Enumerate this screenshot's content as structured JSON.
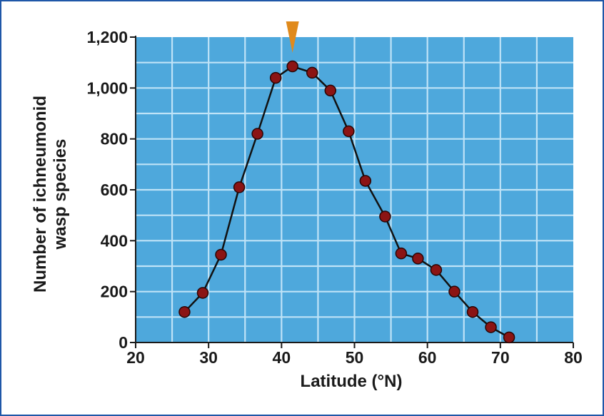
{
  "chart_data": {
    "type": "line",
    "title": "",
    "xlabel": "Latitude (°N)",
    "ylabel_lines": [
      "Number of ichneumonid",
      "wasp species"
    ],
    "xlim": [
      20,
      80
    ],
    "ylim": [
      0,
      1200
    ],
    "x_ticks": [
      20,
      30,
      40,
      50,
      60,
      70,
      80
    ],
    "y_ticks": [
      0,
      200,
      400,
      600,
      800,
      1000,
      1200
    ],
    "y_tick_labels": [
      "0",
      "200",
      "400",
      "600",
      "800",
      "1,000",
      "1,200"
    ],
    "grid": true,
    "peak_marker_x": 41.5,
    "series": [
      {
        "x": [
          26.7,
          29.2,
          31.7,
          34.2,
          36.7,
          39.2,
          41.5,
          44.2,
          46.7,
          49.2,
          51.5,
          54.2,
          56.4,
          58.7,
          61.2,
          63.7,
          66.2,
          68.7,
          71.2
        ],
        "y": [
          120,
          195,
          345,
          610,
          820,
          1040,
          1085,
          1060,
          990,
          830,
          635,
          495,
          350,
          330,
          285,
          200,
          120,
          60,
          20
        ]
      }
    ],
    "colors": {
      "plot_bg": "#4ea8dc",
      "grid": "#bfe3f7",
      "line": "#111111",
      "marker_fill": "#8b1414",
      "marker_stroke": "#2a0505",
      "peak_marker": "#e08a1c",
      "frame": "#1f57a8"
    }
  }
}
